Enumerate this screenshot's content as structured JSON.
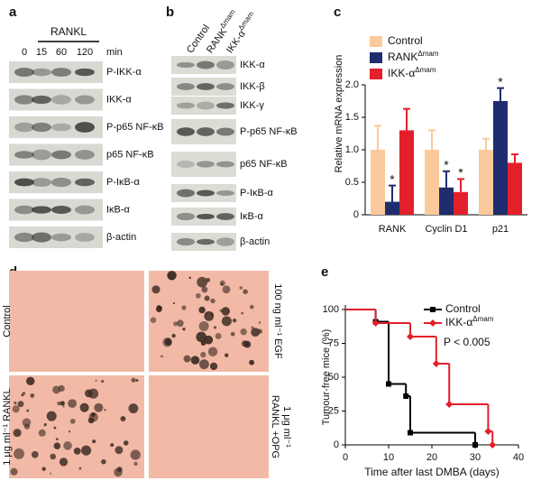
{
  "panels": {
    "a": {
      "label": "a",
      "treatment": "RANKL",
      "timepoints": [
        "0",
        "15",
        "60",
        "120"
      ],
      "time_unit": "min",
      "blots": [
        "P-IKK-α",
        "IKK-α",
        "P-p65 NF-κB",
        "p65 NF-κB",
        "P-IκB-α",
        "IκB-α",
        "β-actin"
      ]
    },
    "b": {
      "label": "b",
      "lanes": [
        "Control",
        "RANKΔmam",
        "IKK-αΔmam"
      ],
      "blots": [
        "IKK-α",
        "IKK-β",
        "IKK-γ",
        "P-p65 NF-κB",
        "p65 NF-κB",
        "P-IκB-α",
        "IκB-α",
        "β-actin"
      ]
    },
    "c": {
      "label": "c"
    },
    "d": {
      "label": "d",
      "conditions": [
        {
          "lines": [
            "Control"
          ]
        },
        {
          "lines": [
            "100 ng ml⁻¹ EGF"
          ]
        },
        {
          "lines": [
            "1 μg ml⁻¹ RANKL"
          ]
        },
        {
          "lines": [
            "1 μg ml⁻¹",
            "RANKL +OPG"
          ]
        }
      ]
    },
    "e": {
      "label": "e"
    }
  },
  "chart_data": [
    {
      "type": "bar",
      "ylabel": "Relative mRNA expression",
      "categories": [
        "RANK",
        "Cyclin D1",
        "p21"
      ],
      "ylim": [
        0,
        2
      ],
      "yticks": [
        0,
        0.5,
        {
          "value": 1,
          "label": "1.0"
        },
        1.5,
        {
          "value": 2,
          "label": "2.0"
        }
      ],
      "legend": "upper left",
      "series": [
        {
          "name": "Control",
          "color": "#fbc99b",
          "values": [
            1.0,
            1.0,
            1.0
          ],
          "errors": [
            0.37,
            0.3,
            0.17
          ]
        },
        {
          "name": "RANKΔmam",
          "color": "#1f2d6e",
          "values": [
            0.2,
            0.42,
            1.75
          ],
          "errors": [
            0.25,
            0.25,
            0.2
          ],
          "significance": [
            "*",
            "*",
            "*"
          ]
        },
        {
          "name": "IKK-αΔmam",
          "color": "#e3202a",
          "values": [
            1.3,
            0.35,
            0.8
          ],
          "errors": [
            0.33,
            0.2,
            0.13
          ],
          "significance": [
            null,
            "*",
            null
          ]
        }
      ]
    },
    {
      "type": "line",
      "xlabel": "Time after last DMBA (days)",
      "ylabel": "Tumour-free mice (%)",
      "xlim": [
        0,
        40
      ],
      "xticks": [
        0,
        10,
        20,
        30,
        40
      ],
      "ylim": [
        0,
        100
      ],
      "yticks": [
        0,
        25,
        50,
        75,
        100
      ],
      "legend": "upper right",
      "annotation": "P < 0.005",
      "series": [
        {
          "name": "Control",
          "color": "#000000",
          "marker": "square",
          "x": [
            0,
            7,
            10,
            14,
            15,
            30
          ],
          "values": [
            100,
            91,
            45,
            36,
            9,
            0
          ]
        },
        {
          "name": "IKK-αΔmam",
          "color": "#e3202a",
          "marker": "diamond",
          "x": [
            0,
            7,
            15,
            21,
            24,
            33,
            34
          ],
          "values": [
            100,
            90,
            80,
            60,
            30,
            10,
            0
          ]
        }
      ]
    }
  ]
}
